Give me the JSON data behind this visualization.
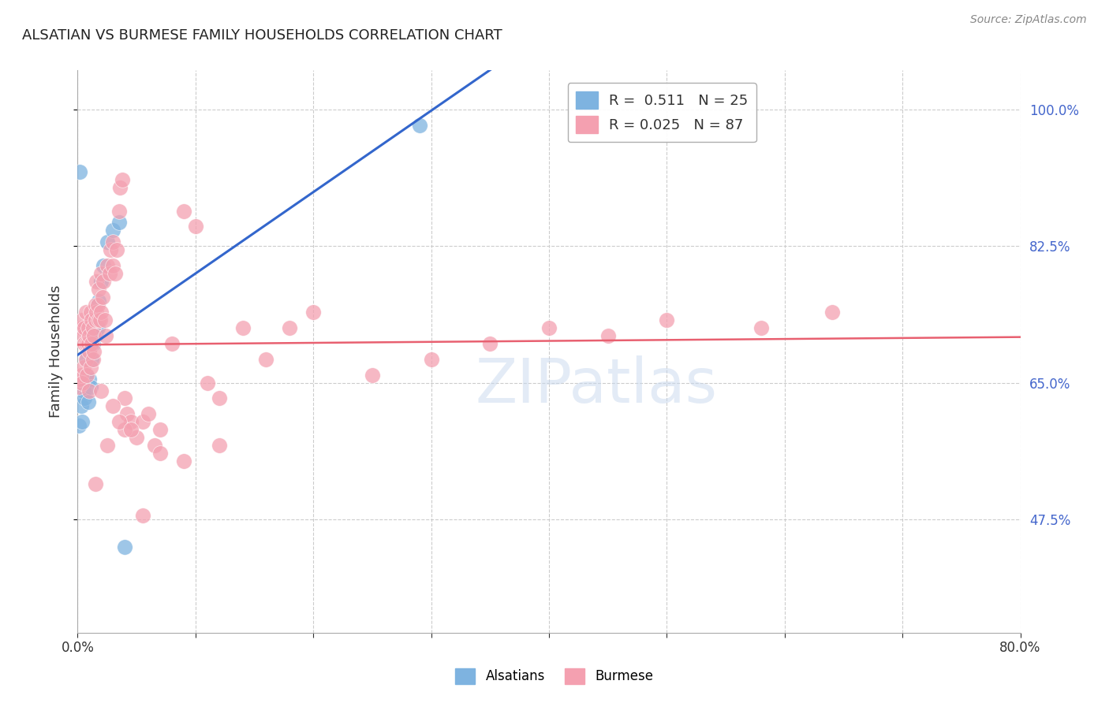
{
  "title": "ALSATIAN VS BURMESE FAMILY HOUSEHOLDS CORRELATION CHART",
  "source": "Source: ZipAtlas.com",
  "ylabel": "Family Households",
  "right_ytick_values": [
    1.0,
    0.825,
    0.65,
    0.475
  ],
  "xlim": [
    0.0,
    0.8
  ],
  "ylim": [
    0.33,
    1.05
  ],
  "alsatian_R": 0.511,
  "alsatian_N": 25,
  "burmese_R": 0.025,
  "burmese_N": 87,
  "alsatian_color": "#7EB3E0",
  "burmese_color": "#F4A0B0",
  "alsatian_line_color": "#3366CC",
  "burmese_line_color": "#E86070",
  "watermark": "ZIPatlas",
  "background_color": "#FFFFFF",
  "alsatian_x": [
    0.001,
    0.002,
    0.003,
    0.004,
    0.005,
    0.006,
    0.007,
    0.008,
    0.009,
    0.01,
    0.011,
    0.012,
    0.013,
    0.014,
    0.015,
    0.016,
    0.017,
    0.018,
    0.02,
    0.022,
    0.025,
    0.03,
    0.035,
    0.04,
    0.29
  ],
  "alsatian_y": [
    0.595,
    0.92,
    0.62,
    0.6,
    0.64,
    0.63,
    0.66,
    0.68,
    0.625,
    0.655,
    0.645,
    0.68,
    0.7,
    0.715,
    0.71,
    0.72,
    0.72,
    0.755,
    0.78,
    0.8,
    0.83,
    0.845,
    0.855,
    0.44,
    0.98
  ],
  "burmese_x": [
    0.001,
    0.002,
    0.003,
    0.003,
    0.004,
    0.004,
    0.005,
    0.005,
    0.006,
    0.006,
    0.007,
    0.007,
    0.008,
    0.008,
    0.009,
    0.009,
    0.01,
    0.01,
    0.011,
    0.011,
    0.012,
    0.012,
    0.013,
    0.013,
    0.014,
    0.014,
    0.015,
    0.015,
    0.016,
    0.016,
    0.017,
    0.018,
    0.018,
    0.019,
    0.02,
    0.02,
    0.021,
    0.022,
    0.023,
    0.024,
    0.025,
    0.027,
    0.028,
    0.03,
    0.03,
    0.032,
    0.033,
    0.035,
    0.036,
    0.038,
    0.04,
    0.042,
    0.045,
    0.05,
    0.055,
    0.06,
    0.065,
    0.07,
    0.08,
    0.09,
    0.1,
    0.11,
    0.12,
    0.14,
    0.16,
    0.18,
    0.2,
    0.25,
    0.3,
    0.35,
    0.4,
    0.45,
    0.5,
    0.58,
    0.64,
    0.01,
    0.02,
    0.03,
    0.04,
    0.015,
    0.025,
    0.035,
    0.045,
    0.055,
    0.07,
    0.09,
    0.12
  ],
  "burmese_y": [
    0.645,
    0.655,
    0.66,
    0.72,
    0.65,
    0.73,
    0.67,
    0.71,
    0.72,
    0.7,
    0.68,
    0.74,
    0.7,
    0.66,
    0.72,
    0.7,
    0.71,
    0.69,
    0.67,
    0.74,
    0.7,
    0.73,
    0.72,
    0.68,
    0.71,
    0.69,
    0.73,
    0.75,
    0.74,
    0.78,
    0.75,
    0.73,
    0.77,
    0.73,
    0.79,
    0.74,
    0.76,
    0.78,
    0.73,
    0.71,
    0.8,
    0.79,
    0.82,
    0.8,
    0.83,
    0.79,
    0.82,
    0.87,
    0.9,
    0.91,
    0.63,
    0.61,
    0.6,
    0.58,
    0.6,
    0.61,
    0.57,
    0.59,
    0.7,
    0.87,
    0.85,
    0.65,
    0.63,
    0.72,
    0.68,
    0.72,
    0.74,
    0.66,
    0.68,
    0.7,
    0.72,
    0.71,
    0.73,
    0.72,
    0.74,
    0.64,
    0.64,
    0.62,
    0.59,
    0.52,
    0.57,
    0.6,
    0.59,
    0.48,
    0.56,
    0.55,
    0.57
  ]
}
